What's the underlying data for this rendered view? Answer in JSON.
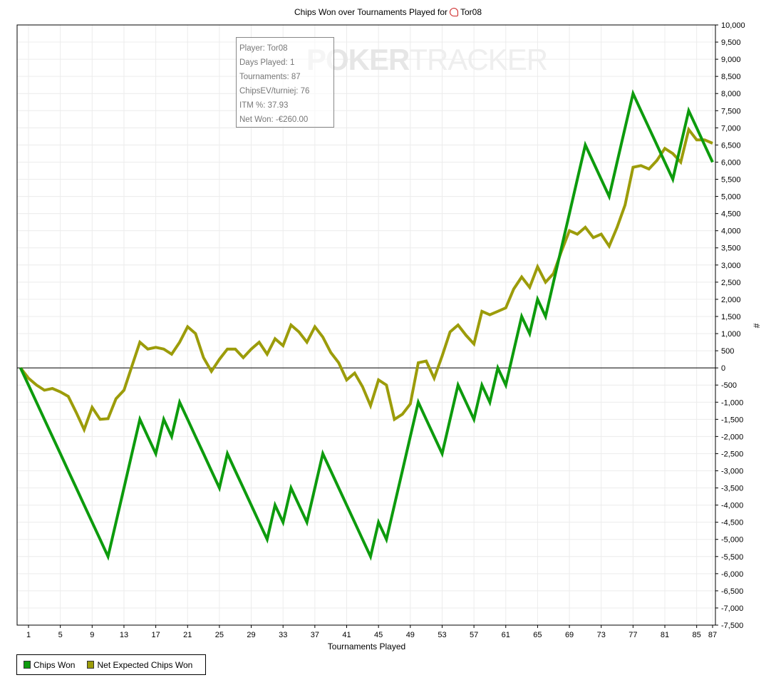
{
  "chart_data": {
    "type": "line",
    "title": "Chips Won over Tournaments Played for",
    "player": "Tor08",
    "xlabel": "Tournaments Played",
    "ylabel": "#",
    "xlim": [
      0,
      87
    ],
    "ylim": [
      -7500,
      10000
    ],
    "ytick_step": 500,
    "xticks": [
      1,
      5,
      9,
      13,
      17,
      21,
      25,
      29,
      33,
      37,
      41,
      45,
      49,
      53,
      57,
      61,
      65,
      69,
      73,
      77,
      81,
      85,
      87
    ],
    "grid": true,
    "legend_position": "bottom-left",
    "x": [
      0,
      1,
      2,
      3,
      4,
      5,
      6,
      7,
      8,
      9,
      10,
      11,
      12,
      13,
      14,
      15,
      16,
      17,
      18,
      19,
      20,
      21,
      22,
      23,
      24,
      25,
      26,
      27,
      28,
      29,
      30,
      31,
      32,
      33,
      34,
      35,
      36,
      37,
      38,
      39,
      40,
      41,
      42,
      43,
      44,
      45,
      46,
      47,
      48,
      49,
      50,
      51,
      52,
      53,
      54,
      55,
      56,
      57,
      58,
      59,
      60,
      61,
      62,
      63,
      64,
      65,
      66,
      67,
      68,
      69,
      70,
      71,
      72,
      73,
      74,
      75,
      76,
      77,
      78,
      79,
      80,
      81,
      82,
      83,
      84,
      85,
      86,
      87
    ],
    "series": [
      {
        "name": "Chips Won",
        "color": "#0d9b0d",
        "values": [
          0,
          -500,
          -1000,
          -1500,
          -2000,
          -2500,
          -3000,
          -3500,
          -4000,
          -4500,
          -5000,
          -5500,
          -4500,
          -3500,
          -2500,
          -1500,
          -2000,
          -2500,
          -1500,
          -2000,
          -1000,
          -1500,
          -2000,
          -2500,
          -3000,
          -3500,
          -2500,
          -3000,
          -3500,
          -4000,
          -4500,
          -5000,
          -4000,
          -4500,
          -3500,
          -4000,
          -4500,
          -3500,
          -2500,
          -3000,
          -3500,
          -4000,
          -4500,
          -5000,
          -5500,
          -4500,
          -5000,
          -4000,
          -3000,
          -2000,
          -1000,
          -1500,
          -2000,
          -2500,
          -1500,
          -500,
          -1000,
          -1500,
          -500,
          -1000,
          0,
          -500,
          500,
          1500,
          1000,
          2000,
          1500,
          2500,
          3500,
          4500,
          5500,
          6500,
          6000,
          5500,
          5000,
          6000,
          7000,
          8000,
          7500,
          7000,
          6500,
          6000,
          5500,
          6500,
          7500,
          7000,
          6500,
          6000
        ]
      },
      {
        "name": "Net Expected Chips Won",
        "color": "#9c9c0a",
        "values": [
          0,
          -300,
          -500,
          -650,
          -600,
          -700,
          -830,
          -1300,
          -1800,
          -1150,
          -1500,
          -1480,
          -900,
          -650,
          50,
          750,
          550,
          600,
          550,
          400,
          750,
          1200,
          1000,
          300,
          -100,
          250,
          550,
          550,
          300,
          550,
          750,
          400,
          850,
          650,
          1250,
          1050,
          750,
          1200,
          900,
          450,
          150,
          -350,
          -150,
          -550,
          -1100,
          -350,
          -500,
          -1500,
          -1350,
          -1050,
          150,
          200,
          -300,
          350,
          1050,
          1250,
          950,
          700,
          1650,
          1550,
          1650,
          1750,
          2300,
          2650,
          2350,
          2950,
          2500,
          2750,
          3400,
          4000,
          3900,
          4100,
          3800,
          3900,
          3550,
          4100,
          4750,
          5850,
          5900,
          5800,
          6050,
          6400,
          6250,
          6000,
          6950,
          6650,
          6650,
          6550
        ]
      }
    ]
  },
  "infobox": {
    "player": "Player: Tor08",
    "days": "Days Played: 1",
    "tournaments": "Tournaments: 87",
    "chipsev": "ChipsEV/turniej: 76",
    "itm": "ITM %: 37.93",
    "net_won": "Net Won: -€260.00"
  },
  "watermark": {
    "a": "POKER",
    "b": "TRACKER"
  }
}
